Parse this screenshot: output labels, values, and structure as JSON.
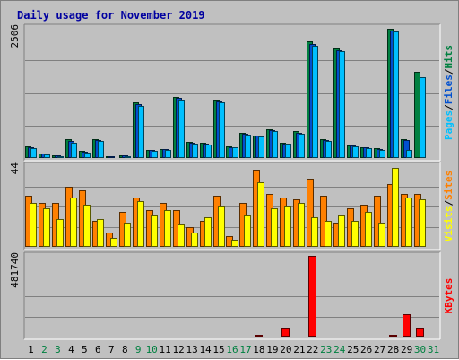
{
  "chart_data": {
    "type": "bar",
    "title": "Daily usage for November 2019",
    "categories": [
      "1",
      "2",
      "3",
      "4",
      "5",
      "6",
      "7",
      "8",
      "9",
      "10",
      "11",
      "12",
      "13",
      "14",
      "15",
      "16",
      "17",
      "18",
      "19",
      "20",
      "21",
      "22",
      "23",
      "24",
      "25",
      "26",
      "27",
      "28",
      "29",
      "30",
      "31"
    ],
    "weekend_days": [
      "2",
      "3",
      "9",
      "10",
      "16",
      "17",
      "23",
      "24",
      "30",
      "31"
    ],
    "colors": {
      "title": "#0000a0",
      "pages": "#00c0ff",
      "files": "#0050d0",
      "hits": "#008040",
      "visits": "#ffff00",
      "sites": "#ff8000",
      "kbytes": "#ff0000",
      "weekday_label": "#000000",
      "weekend_label": "#008040"
    },
    "panels": [
      {
        "id": "hits-files-pages",
        "ymax_label": "2506",
        "ylim": [
          0,
          2506
        ],
        "legend": [
          {
            "text": "Pages",
            "color": "#00c0ff"
          },
          {
            "text": "Files",
            "color": "#0050d0"
          },
          {
            "text": "Hits",
            "color": "#008040"
          }
        ],
        "series": [
          {
            "name": "Hits",
            "color": "#008040",
            "values": [
              220,
              95,
              50,
              360,
              130,
              360,
              35,
              50,
              1065,
              160,
              180,
              1175,
              310,
              290,
              1120,
              230,
              490,
              440,
              545,
              300,
              510,
              2250,
              360,
              2115,
              250,
              215,
              185,
              2490,
              370,
              1665,
              0
            ]
          },
          {
            "name": "Files",
            "color": "#0050d0",
            "values": [
              205,
              85,
              45,
              330,
              115,
              340,
              30,
              45,
              1030,
              150,
              165,
              1150,
              295,
              275,
              1095,
              215,
              470,
              425,
              530,
              285,
              490,
              2195,
              345,
              2080,
              235,
              205,
              170,
              2460,
              340,
              0,
              0
            ]
          },
          {
            "name": "Pages",
            "color": "#00c0ff",
            "values": [
              195,
              75,
              40,
              300,
              100,
              320,
              25,
              35,
              1005,
              140,
              150,
              1130,
              280,
              260,
              1070,
              200,
              455,
              410,
              515,
              270,
              475,
              2155,
              335,
              2060,
              225,
              195,
              160,
              2440,
              160,
              1550,
              0
            ]
          }
        ]
      },
      {
        "id": "visits-sites",
        "ymax_label": "44",
        "ylim": [
          0,
          44
        ],
        "legend": [
          {
            "text": "Visits",
            "color": "#ffff00"
          },
          {
            "text": "Sites",
            "color": "#ff8000"
          }
        ],
        "series": [
          {
            "name": "Sites",
            "color": "#ff8000",
            "values": [
              28,
              24,
              24,
              33,
              31,
              14,
              8,
              19,
              27,
              20,
              24,
              20,
              11,
              14,
              28,
              6,
              24,
              42,
              29,
              27,
              26,
              37,
              28,
              13,
              21,
              23,
              28,
              34,
              29,
              29,
              0
            ]
          },
          {
            "name": "Visits",
            "color": "#ffff00",
            "values": [
              24,
              21,
              15,
              27,
              23,
              15,
              5,
              13,
              25,
              17,
              20,
              12,
              8,
              16,
              22,
              4,
              17,
              35,
              21,
              22,
              24,
              16,
              14,
              17,
              14,
              19,
              13,
              43,
              27,
              26,
              0
            ]
          }
        ]
      },
      {
        "id": "kbytes",
        "ymax_label": "481740",
        "ylim": [
          0,
          481740
        ],
        "legend": [
          {
            "text": "KBytes",
            "color": "#ff0000"
          }
        ],
        "series": [
          {
            "name": "KBytes",
            "color": "#ff0000",
            "values": [
              4000,
              4000,
              4000,
              4000,
              4000,
              4000,
              4000,
              4000,
              4000,
              4000,
              4000,
              4000,
              4000,
              4000,
              4000,
              4000,
              4000,
              10000,
              4000,
              52000,
              4000,
              481740,
              4000,
              8000,
              4000,
              4000,
              4000,
              11000,
              136000,
              56000,
              0
            ]
          }
        ]
      }
    ]
  }
}
